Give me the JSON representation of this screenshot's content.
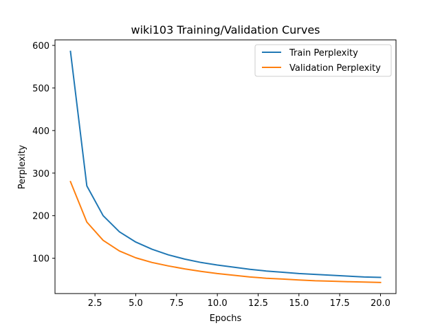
{
  "chart_data": {
    "type": "line",
    "title": "wiki103 Training/Validation Curves",
    "xlabel": "Epochs",
    "ylabel": "Perplexity",
    "xlim": [
      0.05,
      20.95
    ],
    "ylim": [
      17,
      613
    ],
    "xticks": [
      2.5,
      5.0,
      7.5,
      10.0,
      12.5,
      15.0,
      17.5,
      20.0
    ],
    "xtick_labels": [
      "2.5",
      "5.0",
      "7.5",
      "10.0",
      "12.5",
      "15.0",
      "17.5",
      "20.0"
    ],
    "yticks": [
      100,
      200,
      300,
      400,
      500,
      600
    ],
    "ytick_labels": [
      "100",
      "200",
      "300",
      "400",
      "500",
      "600"
    ],
    "grid": false,
    "legend_position": "top-right",
    "x": [
      1,
      2,
      3,
      4,
      5,
      6,
      7,
      8,
      9,
      10,
      11,
      12,
      13,
      14,
      15,
      16,
      17,
      18,
      19,
      20
    ],
    "series": [
      {
        "name": "Train Perplexity",
        "color": "#1f77b4",
        "values": [
          586,
          270,
          200,
          162,
          138,
          121,
          108,
          98,
          90,
          84,
          79,
          74,
          70,
          67,
          64,
          62,
          60,
          58,
          56,
          55
        ]
      },
      {
        "name": "Validation Perplexity",
        "color": "#ff7f0e",
        "values": [
          280,
          185,
          142,
          117,
          101,
          90,
          82,
          75,
          69,
          64,
          60,
          56,
          53,
          51,
          49,
          47,
          46,
          45,
          44,
          43
        ]
      }
    ]
  }
}
